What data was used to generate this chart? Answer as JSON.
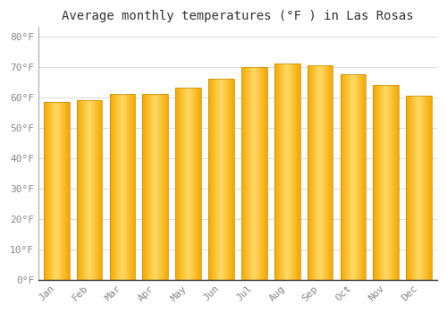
{
  "title": "Average monthly temperatures (°F ) in Las Rosas",
  "months": [
    "Jan",
    "Feb",
    "Mar",
    "Apr",
    "May",
    "Jun",
    "Jul",
    "Aug",
    "Sep",
    "Oct",
    "Nov",
    "Dec"
  ],
  "values": [
    58.5,
    59.0,
    61.0,
    61.0,
    63.0,
    66.0,
    70.0,
    71.0,
    70.5,
    67.5,
    64.0,
    60.5
  ],
  "bar_color_center": "#FFD966",
  "bar_color_edge": "#F5A800",
  "bar_border_color": "#C8880A",
  "background_color": "#ffffff",
  "plot_bg_color": "#ffffff",
  "grid_color": "#dddddd",
  "title_fontsize": 10,
  "tick_fontsize": 8,
  "ylim": [
    0,
    83
  ],
  "yticks": [
    0,
    10,
    20,
    30,
    40,
    50,
    60,
    70,
    80
  ],
  "bar_width": 0.78,
  "figsize": [
    5.0,
    3.5
  ],
  "dpi": 100
}
